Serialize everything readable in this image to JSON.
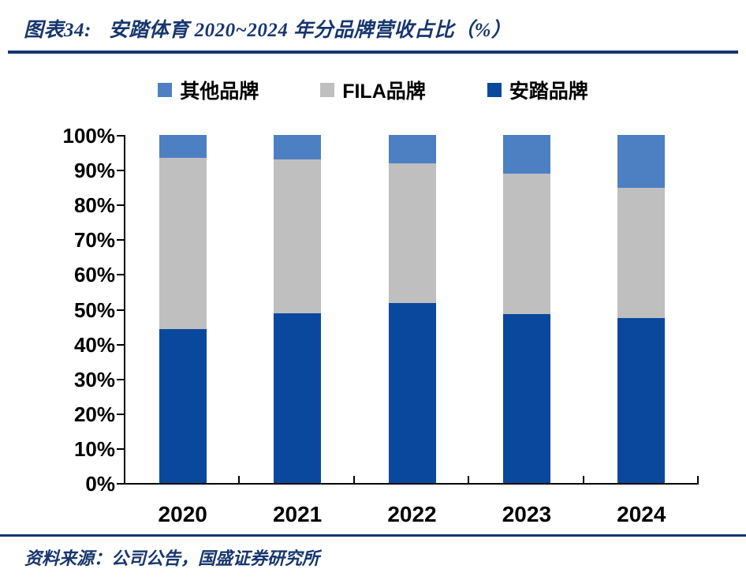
{
  "header": {
    "figure_label": "图表34:",
    "title": "安踏体育 2020~2024 年分品牌营收占比（%）"
  },
  "footer": {
    "source": "资料来源：公司公告，国盛证券研究所"
  },
  "colors": {
    "navy": "#17366e",
    "anta_blue": "#0a489e",
    "fila_gray": "#bfbfbf",
    "others_blue": "#4d80c3",
    "axis_black": "#000000",
    "text_black": "#000000"
  },
  "chart_data": {
    "type": "bar",
    "stacked": true,
    "title": "安踏体育 2020~2024 年分品牌营收占比（%）",
    "categories": [
      "2020",
      "2021",
      "2022",
      "2023",
      "2024"
    ],
    "series": [
      {
        "name": "安踏品牌",
        "color_key": "anta_blue",
        "values": [
          44.3,
          48.7,
          51.7,
          48.6,
          47.3
        ]
      },
      {
        "name": "FILA品牌",
        "color_key": "fila_gray",
        "values": [
          49.1,
          44.2,
          40.1,
          40.3,
          37.6
        ]
      },
      {
        "name": "其他品牌",
        "color_key": "others_blue",
        "values": [
          6.6,
          7.1,
          8.2,
          11.1,
          15.1
        ]
      }
    ],
    "stack_order_bottom_to_top": [
      "安踏品牌",
      "FILA品牌",
      "其他品牌"
    ],
    "legend": [
      {
        "label": "其他品牌",
        "color_key": "others_blue"
      },
      {
        "label": "FILA品牌",
        "color_key": "fila_gray"
      },
      {
        "label": "安踏品牌",
        "color_key": "anta_blue"
      }
    ],
    "legend_position": "top",
    "grid": false,
    "ylim": [
      0,
      100
    ],
    "yticks": [
      0,
      10,
      20,
      30,
      40,
      50,
      60,
      70,
      80,
      90,
      100
    ],
    "ytick_labels": [
      "0%",
      "10%",
      "20%",
      "30%",
      "40%",
      "50%",
      "60%",
      "70%",
      "80%",
      "90%",
      "100%"
    ]
  }
}
